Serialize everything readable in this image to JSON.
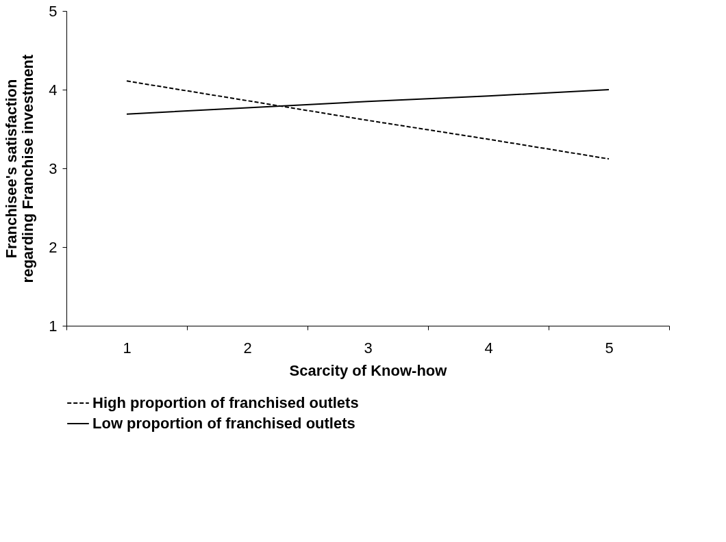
{
  "chart_data": {
    "type": "line",
    "xlabel": "Scarcity of Know-how",
    "ylabel": "Franchisee's satisfaction\nregarding Franchise investment",
    "categories": [
      "1",
      "2",
      "3",
      "4",
      "5"
    ],
    "series": [
      {
        "name": "High proportion of franchised outlets",
        "color": "#000000",
        "line_style": "dashed",
        "values": [
          4.11,
          3.86,
          3.61,
          3.37,
          3.12
        ]
      },
      {
        "name": "Low proportion of franchised outlets",
        "color": "#000000",
        "line_style": "solid",
        "values": [
          3.69,
          3.77,
          3.85,
          3.92,
          4.0
        ]
      }
    ],
    "ylim": [
      1,
      5
    ],
    "yticks": [
      1,
      2,
      3,
      4,
      5
    ],
    "grid": false,
    "legend": "bottom",
    "marker": "none"
  }
}
